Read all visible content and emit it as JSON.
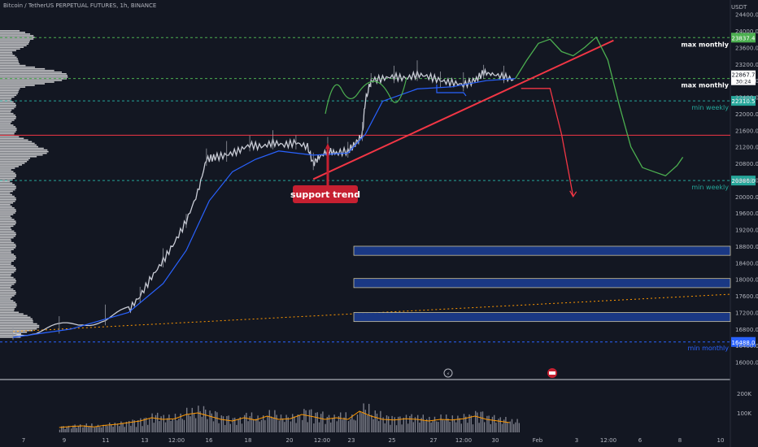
{
  "header": {
    "title": "Bitcoin / TetherUS PERPETUAL FUTURES, 1h, BINANCE"
  },
  "price_axis": {
    "currency": "USDT",
    "current_price": "22867.7",
    "countdown": "30:24"
  },
  "volume_axis": {
    "labels": [
      "200K",
      "100K"
    ]
  },
  "levels": [
    {
      "price": 23837.4,
      "badge": "23837.4",
      "label": "max monthly",
      "color": "#4caf50",
      "label_color": "#ffffff"
    },
    {
      "price": 22850.0,
      "badge": "22850.0",
      "label": "max monthly",
      "color": "#4caf50",
      "label_color": "#ffffff"
    },
    {
      "price": 22310.5,
      "badge": "22310.5",
      "label": "min weekly",
      "color": "#26a69a",
      "label_color": "#26a69a"
    },
    {
      "price": 20386.0,
      "badge": "20386.0",
      "label": "min weekly",
      "color": "#26a69a",
      "label_color": "#26a69a"
    },
    {
      "price": 16488.0,
      "badge": "16488.0",
      "label": "min monthly",
      "color": "#2962ff",
      "label_color": "#2962ff"
    }
  ],
  "resistance_line": {
    "price": 21480,
    "color": "#f23645"
  },
  "annotation": {
    "text": "support trend",
    "color": "#c62031"
  },
  "chart_data": {
    "type": "line",
    "title": "Bitcoin / TetherUS PERPETUAL FUTURES, 1h, BINANCE",
    "ylabel": "USDT",
    "ylim": [
      15600,
      24550
    ],
    "price_ticks": [
      24400,
      24000,
      23600,
      23200,
      22800,
      22400,
      22000,
      21600,
      21200,
      20800,
      20400,
      20000,
      19600,
      19200,
      18800,
      18400,
      18000,
      17600,
      17200,
      16800,
      16400,
      16000
    ],
    "x_labels": [
      "7",
      "9",
      "11",
      "13",
      "12:00",
      "16",
      "18",
      "20",
      "12:00",
      "23",
      "25",
      "27",
      "12:00",
      "30",
      "Feb",
      "3",
      "12:00",
      "6",
      "8",
      "10"
    ],
    "series": [
      {
        "values": [
          [
            0,
            16700
          ],
          [
            4,
            16760
          ],
          [
            8,
            16850
          ],
          [
            12,
            16930
          ],
          [
            16,
            17050
          ],
          [
            20,
            17250
          ],
          [
            22,
            17600
          ],
          [
            24,
            18050
          ],
          [
            26,
            18450
          ],
          [
            28,
            18900
          ],
          [
            30,
            19400
          ],
          [
            32,
            20100
          ],
          [
            33.5,
            20900
          ],
          [
            35,
            20950
          ],
          [
            37,
            21000
          ],
          [
            39,
            21100
          ],
          [
            41,
            21250
          ],
          [
            43,
            21200
          ],
          [
            45,
            21300
          ],
          [
            47,
            21250
          ],
          [
            49,
            21300
          ],
          [
            51,
            21200
          ],
          [
            52,
            20800
          ],
          [
            53,
            20950
          ],
          [
            54.5,
            21100
          ],
          [
            56,
            21050
          ],
          [
            58,
            21100
          ],
          [
            59.5,
            21300
          ],
          [
            60.5,
            21500
          ],
          [
            61,
            22300
          ],
          [
            62,
            22800
          ],
          [
            64,
            22850
          ],
          [
            66,
            22900
          ],
          [
            68,
            22850
          ],
          [
            70,
            22950
          ],
          [
            72,
            22900
          ],
          [
            74,
            22800
          ],
          [
            76,
            22750
          ],
          [
            78,
            22700
          ],
          [
            80,
            22800
          ],
          [
            81.5,
            23000
          ],
          [
            83,
            22950
          ],
          [
            85,
            22900
          ],
          [
            87,
            22800
          ]
        ]
      },
      {
        "values": [
          [
            0,
            16600
          ],
          [
            10,
            16800
          ],
          [
            20,
            17200
          ],
          [
            26,
            17900
          ],
          [
            30,
            18700
          ],
          [
            34,
            19900
          ],
          [
            38,
            20600
          ],
          [
            42,
            20900
          ],
          [
            46,
            21100
          ],
          [
            52,
            21000
          ],
          [
            58,
            21050
          ],
          [
            61,
            21500
          ],
          [
            64,
            22300
          ],
          [
            70,
            22600
          ],
          [
            76,
            22650
          ],
          [
            82,
            22800
          ],
          [
            87,
            22850
          ]
        ]
      }
    ],
    "volume": [
      [
        8,
        15
      ],
      [
        10,
        18
      ],
      [
        12,
        20
      ],
      [
        14,
        17
      ],
      [
        16,
        22
      ],
      [
        18,
        25
      ],
      [
        20,
        30
      ],
      [
        22,
        35
      ],
      [
        24,
        45
      ],
      [
        26,
        40
      ],
      [
        28,
        42
      ],
      [
        30,
        55
      ],
      [
        32,
        60
      ],
      [
        34,
        50
      ],
      [
        36,
        40
      ],
      [
        38,
        35
      ],
      [
        40,
        45
      ],
      [
        42,
        38
      ],
      [
        44,
        50
      ],
      [
        46,
        40
      ],
      [
        48,
        42
      ],
      [
        50,
        55
      ],
      [
        52,
        48
      ],
      [
        54,
        40
      ],
      [
        56,
        45
      ],
      [
        58,
        40
      ],
      [
        60,
        65
      ],
      [
        62,
        50
      ],
      [
        64,
        40
      ],
      [
        66,
        38
      ],
      [
        68,
        42
      ],
      [
        70,
        40
      ],
      [
        72,
        35
      ],
      [
        74,
        40
      ],
      [
        76,
        38
      ],
      [
        78,
        42
      ],
      [
        80,
        50
      ],
      [
        82,
        40
      ],
      [
        84,
        35
      ],
      [
        86,
        30
      ]
    ],
    "bullish_path": [
      [
        87,
        22850
      ],
      [
        89,
        23300
      ],
      [
        91,
        23700
      ],
      [
        93,
        23800
      ],
      [
        95,
        23500
      ],
      [
        97,
        23400
      ],
      [
        99,
        23600
      ],
      [
        101,
        23850
      ],
      [
        103,
        23300
      ],
      [
        105,
        22200
      ],
      [
        107,
        21200
      ],
      [
        109,
        20700
      ],
      [
        111,
        20600
      ],
      [
        113,
        20500
      ],
      [
        115,
        20750
      ],
      [
        116,
        20950
      ]
    ],
    "bearish_path": [
      [
        88,
        22610
      ],
      [
        93,
        22610
      ],
      [
        95,
        21500
      ],
      [
        97,
        20000
      ]
    ],
    "support_trend": [
      [
        52,
        20420
      ],
      [
        104,
        23770
      ]
    ],
    "demand_zones": [
      [
        18580,
        18800
      ],
      [
        17800,
        18020
      ],
      [
        16980,
        17200
      ]
    ]
  }
}
